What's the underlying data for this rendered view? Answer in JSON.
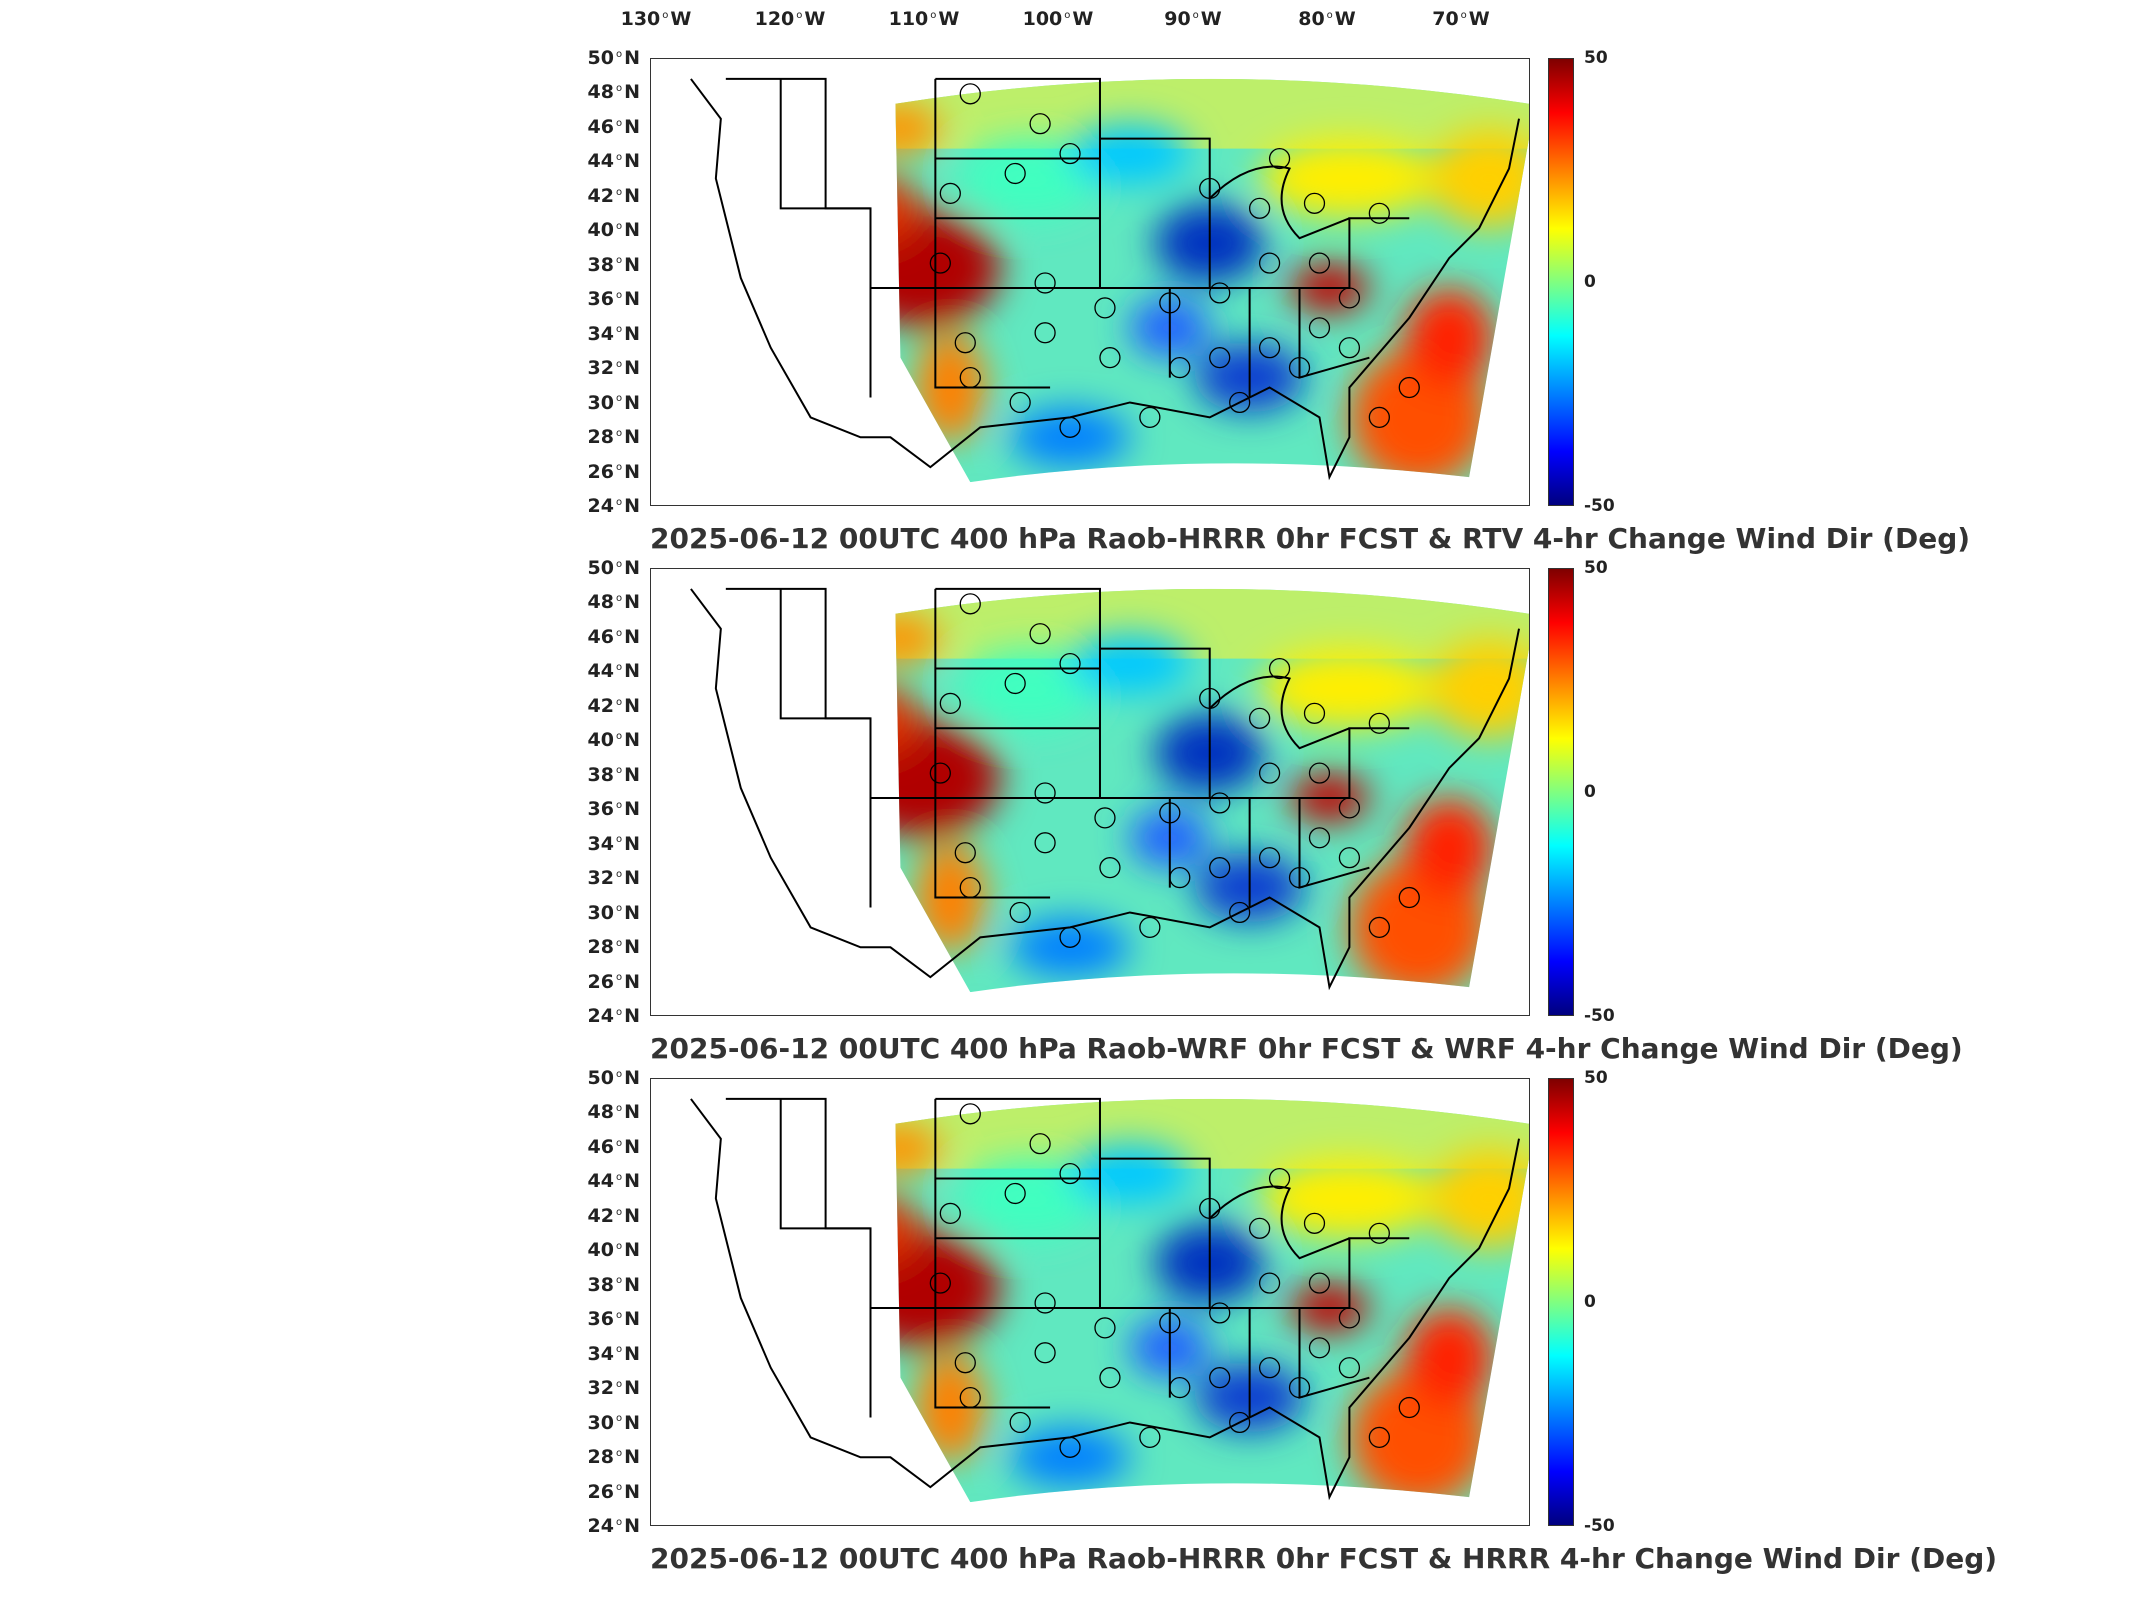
{
  "lon_labels": [
    {
      "deg": "130",
      "hem": "W"
    },
    {
      "deg": "120",
      "hem": "W"
    },
    {
      "deg": "110",
      "hem": "W"
    },
    {
      "deg": "100",
      "hem": "W"
    },
    {
      "deg": "90",
      "hem": "W"
    },
    {
      "deg": "80",
      "hem": "W"
    },
    {
      "deg": "70",
      "hem": "W"
    }
  ],
  "lat_labels": [
    {
      "deg": "50",
      "hem": "N"
    },
    {
      "deg": "48",
      "hem": "N"
    },
    {
      "deg": "46",
      "hem": "N"
    },
    {
      "deg": "44",
      "hem": "N"
    },
    {
      "deg": "42",
      "hem": "N"
    },
    {
      "deg": "40",
      "hem": "N"
    },
    {
      "deg": "38",
      "hem": "N"
    },
    {
      "deg": "36",
      "hem": "N"
    },
    {
      "deg": "34",
      "hem": "N"
    },
    {
      "deg": "32",
      "hem": "N"
    },
    {
      "deg": "30",
      "hem": "N"
    },
    {
      "deg": "28",
      "hem": "N"
    },
    {
      "deg": "26",
      "hem": "N"
    },
    {
      "deg": "24",
      "hem": "N"
    }
  ],
  "colorbar": {
    "max": "50",
    "mid": "0",
    "min": "-50"
  },
  "panels": [
    {
      "title": "2025-06-12 00UTC 400 hPa Raob-HRRR 0hr FCST & RTV 4-hr Change Wind Dir (Deg)"
    },
    {
      "title": "2025-06-12 00UTC 400 hPa Raob-WRF 0hr FCST & WRF 4-hr Change Wind Dir (Deg)"
    },
    {
      "title": "2025-06-12 00UTC 400 hPa Raob-HRRR 0hr FCST & HRRR 4-hr Change Wind Dir (Deg)"
    }
  ]
}
